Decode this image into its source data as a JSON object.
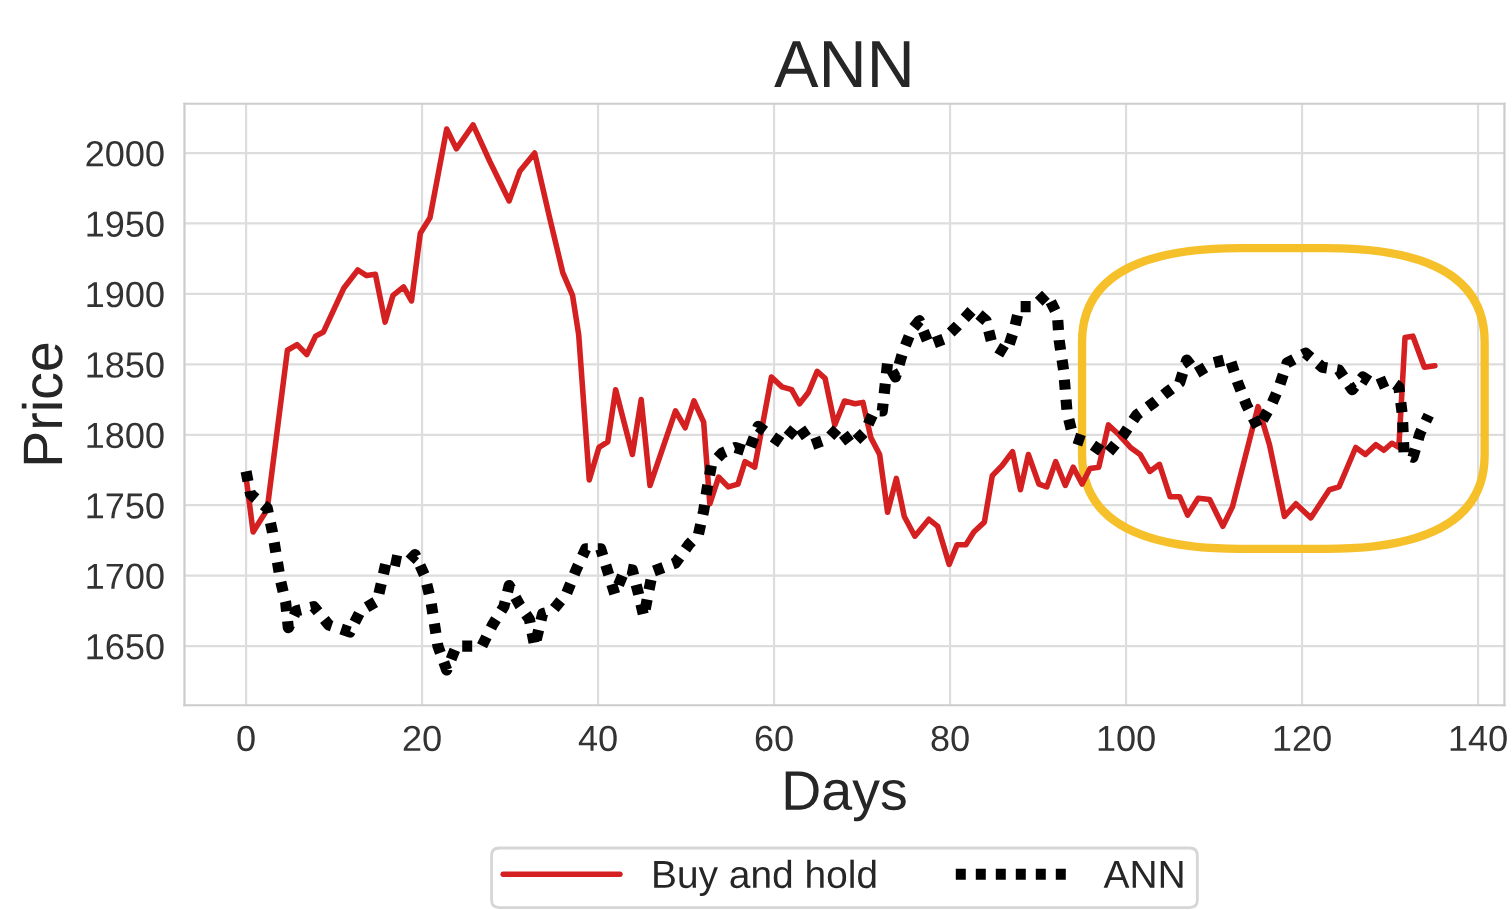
{
  "chart_data": {
    "type": "line",
    "title": "ANN",
    "xlabel": "Days",
    "ylabel": "Price",
    "xlim": [
      -7,
      143
    ],
    "xticks": [
      0,
      20,
      40,
      60,
      80,
      100,
      120,
      140
    ],
    "ylim": [
      1608,
      2035
    ],
    "yticks": [
      1650,
      1700,
      1750,
      1800,
      1850,
      1900,
      1950,
      2000
    ],
    "grid": true,
    "legend": "bottom",
    "marker": "none",
    "series": [
      {
        "name": "Buy and hold",
        "color": "#d42020",
        "line_style": "solid",
        "x": [
          0,
          0.8,
          2.4,
          4.7,
          5.8,
          6.9,
          7.9,
          8.8,
          11.1,
          12.7,
          13.7,
          14.7,
          15.8,
          16.7,
          17.9,
          18.8,
          19.8,
          20.9,
          22.8,
          23.9,
          25.8,
          27.7,
          29.9,
          31.1,
          32.8,
          34.5,
          36,
          37.1,
          37.8,
          39,
          40.1,
          41.1,
          42,
          43.9,
          44.9,
          45.9,
          48.8,
          49.9,
          50.9,
          52,
          52.7,
          53.7,
          54.8,
          55.9,
          56.7,
          57.8,
          59.7,
          60.9,
          62,
          62.9,
          63.9,
          64.9,
          65.8,
          66.9,
          68,
          69.2,
          70.1,
          71,
          72,
          72.9,
          73.9,
          74.8,
          76,
          77.6,
          78.6,
          79.9,
          80.8,
          81.8,
          82.7,
          83.9,
          84.8,
          85.9,
          87.1,
          88,
          88.9,
          90.1,
          91,
          92,
          93.1,
          94,
          95,
          95.9,
          96.9,
          98,
          99.2,
          100.5,
          101.6,
          102.7,
          103.8,
          105,
          106.1,
          107,
          108.2,
          109.5,
          111,
          112.1,
          115,
          116.3,
          118,
          119.3,
          121,
          123.1,
          124.2,
          126.1,
          127.2,
          128.4,
          129.3,
          130.2,
          131,
          131.7,
          132.6,
          133.9,
          135.1
        ],
        "values": [
          1770,
          1731,
          1747,
          1860,
          1864,
          1857,
          1870,
          1873,
          1904,
          1917,
          1913,
          1914,
          1880,
          1899,
          1905,
          1895,
          1943,
          1954,
          2017,
          2003,
          2020,
          1994,
          1966,
          1987,
          2000,
          1954,
          1915,
          1899,
          1871,
          1768,
          1791,
          1795,
          1832,
          1786,
          1825,
          1764,
          1817,
          1805,
          1824,
          1809,
          1751,
          1770,
          1763,
          1765,
          1781,
          1777,
          1841,
          1834,
          1832,
          1822,
          1830,
          1845,
          1840,
          1807,
          1824,
          1822,
          1823,
          1798,
          1786,
          1745,
          1769,
          1742,
          1728,
          1740,
          1735,
          1708,
          1722,
          1722,
          1731,
          1738,
          1771,
          1778,
          1788,
          1761,
          1786,
          1765,
          1763,
          1781,
          1764,
          1777,
          1765,
          1776,
          1777,
          1807,
          1800,
          1791,
          1786,
          1774,
          1779,
          1756,
          1756,
          1743,
          1755,
          1754,
          1735,
          1749,
          1820,
          1793,
          1742,
          1751,
          1741,
          1761,
          1763,
          1791,
          1786,
          1793,
          1789,
          1794,
          1791,
          1869,
          1870,
          1848,
          1849
        ]
      },
      {
        "name": "ANN",
        "color": "#000000",
        "line_style": "dotted",
        "x": [
          0,
          0.5,
          2.4,
          3,
          3.9,
          4.5,
          4.8,
          5.7,
          7.7,
          9.4,
          11.8,
          13,
          14.9,
          15.5,
          16,
          18.3,
          19.2,
          20.3,
          21,
          21.8,
          22.8,
          23.9,
          26.8,
          28,
          29.3,
          29.9,
          31.1,
          32.2,
          32.8,
          33.7,
          34.8,
          36.4,
          37.5,
          38.6,
          40.3,
          41.1,
          41.9,
          43.1,
          43.9,
          44.6,
          45.2,
          46.2,
          48.8,
          50.3,
          51.4,
          52,
          52.4,
          52.9,
          54.1,
          55.6,
          57.1,
          58.2,
          59.5,
          60.9,
          62.7,
          64.3,
          66.1,
          67.3,
          68.8,
          70.3,
          71.4,
          72.3,
          72.6,
          72.9,
          73.8,
          74.6,
          75.6,
          76.5,
          77.6,
          79.3,
          80.8,
          82.6,
          84.1,
          84.8,
          86.4,
          87.3,
          87.9,
          89.5,
          91,
          92.2,
          92.4,
          92.9,
          93.3,
          94,
          95.9,
          97.8,
          99.7,
          101.2,
          103.2,
          104.6,
          106.1,
          106.9,
          108,
          109.9,
          111.8,
          112.7,
          113.7,
          115,
          116.5,
          117.4,
          118.3,
          120.4,
          122.3,
          124.2,
          125.7,
          126.9,
          128.4,
          129.9,
          131,
          131.4,
          131.6,
          132.6,
          133.4,
          134.4
        ],
        "values": [
          1774,
          1758,
          1748,
          1731,
          1697,
          1681,
          1663,
          1675,
          1678,
          1665,
          1660,
          1675,
          1682,
          1698,
          1712,
          1709,
          1715,
          1700,
          1682,
          1650,
          1633,
          1650,
          1650,
          1665,
          1678,
          1693,
          1679,
          1669,
          1650,
          1673,
          1675,
          1687,
          1704,
          1719,
          1719,
          1703,
          1687,
          1705,
          1704,
          1687,
          1671,
          1703,
          1709,
          1722,
          1729,
          1746,
          1762,
          1779,
          1787,
          1791,
          1788,
          1806,
          1800,
          1794,
          1807,
          1793,
          1797,
          1805,
          1793,
          1802,
          1817,
          1817,
          1834,
          1851,
          1841,
          1858,
          1874,
          1881,
          1864,
          1868,
          1877,
          1889,
          1881,
          1864,
          1858,
          1875,
          1891,
          1891,
          1900,
          1885,
          1867,
          1846,
          1816,
          1798,
          1794,
          1786,
          1800,
          1814,
          1823,
          1830,
          1837,
          1853,
          1844,
          1851,
          1854,
          1837,
          1821,
          1805,
          1821,
          1834,
          1851,
          1858,
          1848,
          1846,
          1832,
          1841,
          1835,
          1839,
          1834,
          1814,
          1786,
          1784,
          1801,
          1814
        ]
      }
    ]
  }
}
